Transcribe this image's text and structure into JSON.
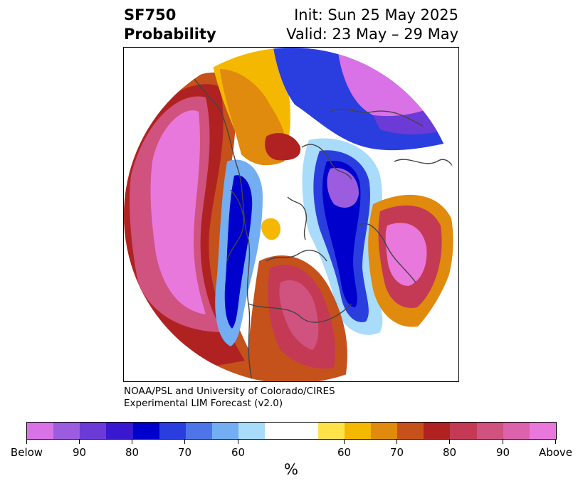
{
  "header": {
    "title_line1": "SF750",
    "title_line2": "Probability",
    "init": "Init: Sun 25 May 2025",
    "valid": "Valid: 23 May – 29 May"
  },
  "credit": {
    "line1": "NOAA/PSL and University of Colorado/CIRES",
    "line2": "Experimental LIM Forecast (v2.0)"
  },
  "colorbar": {
    "units": "%",
    "colors": [
      "#d872e6",
      "#9b5ce0",
      "#6c3ad6",
      "#3a18d0",
      "#0000cc",
      "#2a3ee0",
      "#4d75e8",
      "#73aef2",
      "#a9dbfa",
      "#ffffff",
      "#ffe24a",
      "#f5b800",
      "#e08a0e",
      "#c4521a",
      "#b02222",
      "#c43a55",
      "#d0527e",
      "#dc62ab",
      "#e878dc"
    ],
    "tick_labels": [
      "Below",
      "90",
      "80",
      "70",
      "60",
      "60",
      "70",
      "80",
      "90",
      "Above"
    ]
  }
}
